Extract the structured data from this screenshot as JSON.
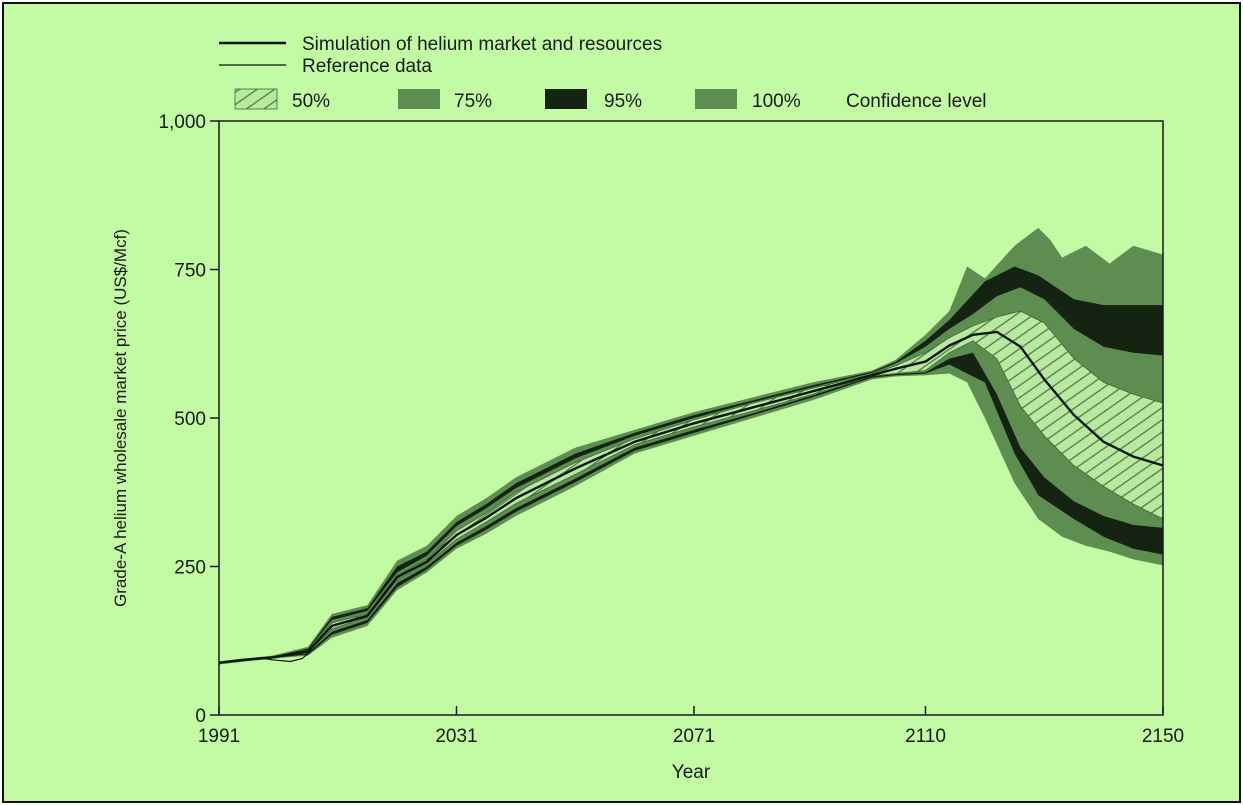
{
  "chart_data": {
    "type": "area",
    "title": "",
    "xlabel": "Year",
    "ylabel": "Grade-A helium wholesale market price (US$/Mcf)",
    "xlim": [
      1991,
      2150
    ],
    "ylim": [
      0,
      1000
    ],
    "x_tick_labels": [
      "1991",
      "2031",
      "2071",
      "2110",
      "2150"
    ],
    "y_tick_labels": [
      "0",
      "250",
      "500",
      "750",
      "1,000"
    ],
    "grid": false,
    "legend": {
      "lines": [
        {
          "label": "Simulation of helium market and resources",
          "stroke_width": 2.4
        },
        {
          "label": "Reference data",
          "stroke_width": 1.2
        }
      ],
      "bands": [
        {
          "label": "50%",
          "color": "#b9e9a0",
          "hatch": true
        },
        {
          "label": "75%",
          "color": "#5e8d52",
          "hatch": false
        },
        {
          "label": "95%",
          "color": "#142312",
          "hatch": false
        },
        {
          "label": "100%",
          "color": "#5e8d52",
          "hatch": false
        }
      ],
      "suffix": "Confidence level",
      "placement": "top"
    },
    "bands": [
      {
        "name": "100%",
        "x": [
          1991,
          2000,
          2006,
          2010,
          2016,
          2021,
          2026,
          2031,
          2036,
          2041,
          2051,
          2061,
          2071,
          2081,
          2091,
          2101,
          2105,
          2110,
          2114,
          2117,
          2120,
          2125,
          2129,
          2131,
          2133,
          2137,
          2141,
          2145,
          2150
        ],
        "upper": [
          90,
          100,
          115,
          170,
          185,
          260,
          285,
          335,
          365,
          400,
          450,
          480,
          510,
          535,
          560,
          580,
          598,
          640,
          680,
          755,
          735,
          790,
          820,
          800,
          770,
          790,
          760,
          790,
          775
        ],
        "lower": [
          85,
          95,
          100,
          130,
          150,
          210,
          240,
          280,
          305,
          335,
          385,
          440,
          470,
          500,
          530,
          565,
          570,
          572,
          575,
          560,
          500,
          390,
          330,
          315,
          300,
          285,
          275,
          262,
          252
        ]
      },
      {
        "name": "95%",
        "x": [
          1991,
          2000,
          2006,
          2010,
          2016,
          2021,
          2026,
          2031,
          2036,
          2041,
          2051,
          2061,
          2071,
          2081,
          2091,
          2101,
          2105,
          2110,
          2114,
          2120,
          2125,
          2129,
          2135,
          2140,
          2145,
          2150
        ],
        "upper": [
          89,
          98,
          112,
          165,
          180,
          250,
          275,
          325,
          355,
          390,
          440,
          475,
          505,
          530,
          555,
          578,
          595,
          630,
          665,
          730,
          755,
          740,
          700,
          690,
          690,
          690
        ],
        "lower": [
          86,
          96,
          102,
          135,
          155,
          215,
          245,
          285,
          312,
          342,
          392,
          445,
          475,
          505,
          535,
          568,
          572,
          575,
          590,
          560,
          440,
          370,
          330,
          300,
          280,
          270
        ]
      },
      {
        "name": "75%",
        "x": [
          1991,
          2000,
          2006,
          2010,
          2016,
          2021,
          2026,
          2031,
          2036,
          2041,
          2051,
          2061,
          2071,
          2081,
          2091,
          2101,
          2105,
          2110,
          2114,
          2118,
          2122,
          2126,
          2130,
          2135,
          2140,
          2145,
          2150
        ],
        "upper": [
          88,
          97,
          110,
          160,
          175,
          240,
          268,
          318,
          348,
          382,
          432,
          470,
          500,
          527,
          552,
          576,
          592,
          620,
          650,
          675,
          705,
          720,
          700,
          650,
          620,
          610,
          605
        ],
        "lower": [
          87,
          97,
          104,
          140,
          160,
          222,
          250,
          290,
          318,
          348,
          398,
          450,
          480,
          508,
          538,
          570,
          574,
          577,
          600,
          610,
          540,
          450,
          400,
          360,
          335,
          320,
          315
        ]
      },
      {
        "name": "50%",
        "x": [
          1991,
          2000,
          2006,
          2010,
          2016,
          2021,
          2026,
          2031,
          2036,
          2041,
          2051,
          2061,
          2071,
          2081,
          2091,
          2101,
          2105,
          2110,
          2114,
          2118,
          2122,
          2126,
          2130,
          2135,
          2140,
          2145,
          2150
        ],
        "upper": [
          88,
          97,
          108,
          155,
          170,
          235,
          262,
          310,
          340,
          375,
          425,
          465,
          497,
          525,
          550,
          574,
          588,
          610,
          635,
          655,
          670,
          680,
          660,
          600,
          560,
          540,
          525
        ],
        "lower": [
          87,
          97,
          106,
          145,
          165,
          228,
          255,
          296,
          325,
          356,
          405,
          455,
          485,
          512,
          540,
          571,
          575,
          580,
          610,
          630,
          600,
          520,
          470,
          420,
          385,
          355,
          330
        ]
      }
    ],
    "series": [
      {
        "name": "Simulation of helium market and resources",
        "x": [
          1991,
          1995,
          2000,
          2006,
          2010,
          2016,
          2021,
          2026,
          2031,
          2036,
          2041,
          2051,
          2061,
          2071,
          2081,
          2091,
          2101,
          2105,
          2110,
          2114,
          2118,
          2122,
          2126,
          2130,
          2135,
          2140,
          2145,
          2150
        ],
        "y": [
          88,
          93,
          97,
          107,
          150,
          167,
          232,
          258,
          303,
          332,
          365,
          415,
          460,
          491,
          518,
          545,
          572,
          583,
          595,
          622,
          640,
          645,
          620,
          565,
          505,
          460,
          435,
          420
        ]
      },
      {
        "name": "Reference data",
        "x": [
          1991,
          1995,
          1998,
          2000,
          2003,
          2005,
          2008
        ],
        "y": [
          88,
          92,
          96,
          93,
          90,
          95,
          120
        ]
      }
    ]
  }
}
